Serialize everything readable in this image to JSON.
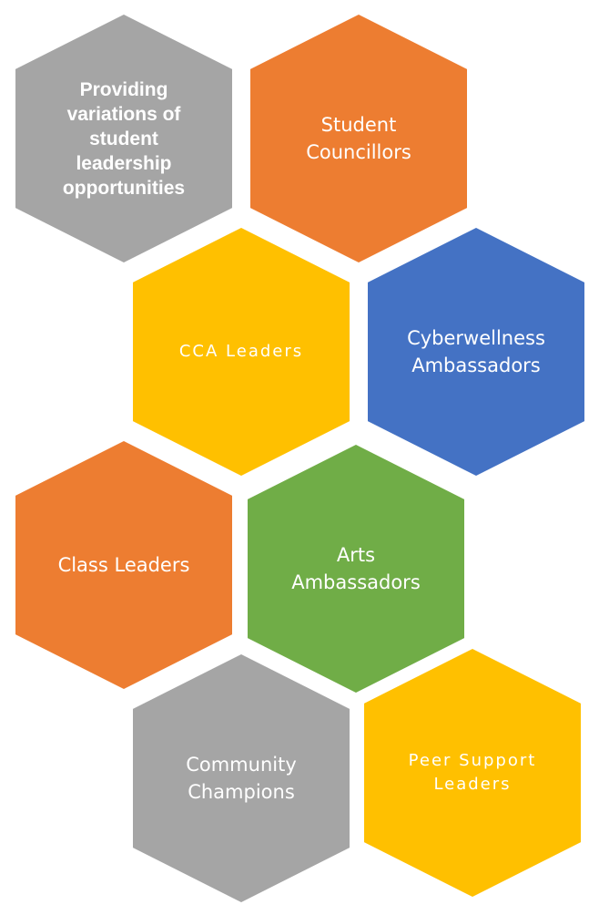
{
  "diagram": {
    "hexagons": [
      {
        "label": "Providing\nvariations of\nstudent\nleadership\nopportunities",
        "color": "#A5A5A5"
      },
      {
        "label": "Student\nCouncillors",
        "color": "#ED7D31"
      },
      {
        "label": "CCA Leaders",
        "color": "#FFC000"
      },
      {
        "label": "Cyberwellness\nAmbassadors",
        "color": "#4472C4"
      },
      {
        "label": "Class Leaders",
        "color": "#ED7D31"
      },
      {
        "label": "Arts\nAmbassadors",
        "color": "#70AD47"
      },
      {
        "label": "Community\nChampions",
        "color": "#A5A5A5"
      },
      {
        "label": "Peer Support\nLeaders",
        "color": "#FFC000"
      }
    ]
  }
}
